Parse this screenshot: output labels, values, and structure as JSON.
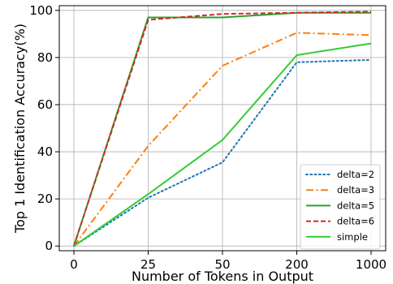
{
  "chart_data": {
    "type": "line",
    "title": "",
    "xlabel": "Number of Tokens in Output",
    "ylabel": "Top 1 Identification Accuracy(%)",
    "categories": [
      "0",
      "25",
      "50",
      "200",
      "1000"
    ],
    "ylim": [
      -2,
      102
    ],
    "yticks": [
      0,
      20,
      40,
      60,
      80,
      100
    ],
    "grid": true,
    "legend_position": "lower-right",
    "series": [
      {
        "name": "delta=2",
        "values": [
          0,
          20.5,
          35.5,
          78,
          79
        ],
        "color": "#1f77b4",
        "style": "dotted"
      },
      {
        "name": "delta=3",
        "values": [
          0,
          42.5,
          76.5,
          90.5,
          89.5
        ],
        "color": "#ff7f0e",
        "style": "dashdot"
      },
      {
        "name": "delta=5",
        "values": [
          0,
          97,
          97,
          99,
          99
        ],
        "color": "#2ca02c",
        "style": "solid"
      },
      {
        "name": "delta=6",
        "values": [
          0,
          96,
          98.5,
          99,
          99.5
        ],
        "color": "#d62728",
        "style": "dashed"
      },
      {
        "name": "simple",
        "values": [
          0,
          22,
          45,
          81,
          86
        ],
        "color": "#33cc33",
        "style": "solid"
      }
    ]
  }
}
